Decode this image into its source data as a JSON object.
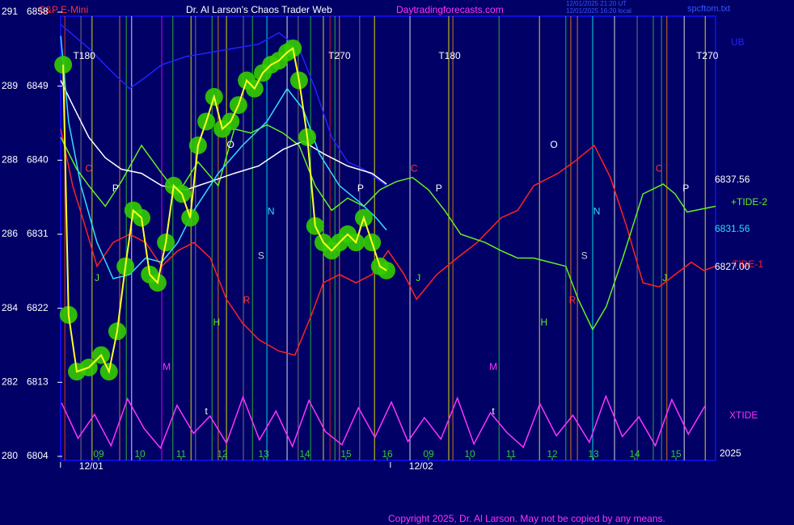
{
  "chart_data": {
    "type": "line",
    "header": {
      "symbol": "S&P E-Mini",
      "title": "Dr. Al Larson's Chaos Trader Web",
      "url": "Daytradingforecasts.com",
      "timestamp_ut": "12/01/2025 21:20 UT",
      "timestamp_local": "12/01/2025 16:20 local",
      "file": "spcftom.txt"
    },
    "copyright": "Copyright 2025, Dr. Al Larson. May not be copied by any means.",
    "xlim": [
      0,
      16
    ],
    "xticks": [
      {
        "value": 1,
        "label": "09"
      },
      {
        "value": 2,
        "label": "10"
      },
      {
        "value": 3,
        "label": "11"
      },
      {
        "value": 4,
        "label": "12"
      },
      {
        "value": 5,
        "label": "13"
      },
      {
        "value": 6,
        "label": "14"
      },
      {
        "value": 7,
        "label": "15"
      },
      {
        "value": 8,
        "label": "16"
      },
      {
        "value": 9,
        "label": "09"
      },
      {
        "value": 10,
        "label": "10"
      },
      {
        "value": 11,
        "label": "11"
      },
      {
        "value": 12,
        "label": "12"
      },
      {
        "value": 13,
        "label": "13"
      },
      {
        "value": 14,
        "label": "14"
      },
      {
        "value": 15,
        "label": "15"
      }
    ],
    "date_labels": [
      {
        "text": "12/01",
        "x": 0.82
      },
      {
        "text": "12/02",
        "x": 8.82
      }
    ],
    "year_label": "2025",
    "ylim": [
      6804,
      6858
    ],
    "yticks": [
      6804,
      6813,
      6822,
      6831,
      6840,
      6849,
      6858
    ],
    "left_scale": [
      "280",
      "282",
      "284",
      "286",
      "288",
      "289",
      "291"
    ],
    "event_lines": {
      "x": [
        0.18,
        0.57,
        0.84,
        1.51,
        1.67,
        1.8,
        2.53,
        2.8,
        3.24,
        3.35,
        3.75,
        3.9,
        4.1,
        4.51,
        4.73,
        5.08,
        5.57,
        5.84,
        6.14,
        6.45,
        6.61,
        6.73,
        6.84,
        7.33,
        7.69,
        8.55,
        9.49,
        9.59,
        10.71,
        11.69,
        12.33,
        12.45,
        12.61,
        12.98,
        13.51,
        14.06,
        14.45,
        14.65,
        14.78,
        15.2,
        15.71
      ],
      "colors": [
        "#ff4400",
        "#888888",
        "#ffff00",
        "#ff8800",
        "#33cc33",
        "#ffffff",
        "#ff00ff",
        "#33cc33",
        "#ffff00",
        "#888888",
        "#33cc33",
        "#ff8800",
        "#ffff00",
        "#888888",
        "#33cc33",
        "#00ffff",
        "#ffffff",
        "#888888",
        "#33cc33",
        "#ffff00",
        "#ff2200",
        "#33cc33",
        "#ff8800",
        "#888888",
        "#ffff00",
        "#ffffff",
        "#ffff00",
        "#ff8800",
        "#33cc33",
        "#ffff00",
        "#33cc33",
        "#ff8800",
        "#ff8800",
        "#00ffff",
        "#ffffff",
        "#888888",
        "#33cc33",
        "#33cc33",
        "#ff8800",
        "#ffffff",
        "#ffff00"
      ]
    },
    "series": [
      {
        "name": "UB",
        "color": "#2222ff",
        "x": [
          0.08,
          0.76,
          1.35,
          1.75,
          2.14,
          2.53,
          3.12,
          3.71,
          4.29,
          4.88,
          5.37,
          5.86,
          6.25,
          6.65,
          7.04,
          7.43,
          7.98
        ],
        "values": [
          6856.5,
          6853.6,
          6850.6,
          6848.7,
          6850.1,
          6851.6,
          6852.6,
          6853.1,
          6853.6,
          6854.1,
          6855.5,
          6853.6,
          6848.7,
          6842.8,
          6839.8,
          6838.9,
          6836.9
        ]
      },
      {
        "name": "XTIDE",
        "color": "#ff33ff",
        "x": [
          0.1,
          0.5,
          0.9,
          1.3,
          1.7,
          2.1,
          2.5,
          2.9,
          3.3,
          3.7,
          4.1,
          4.5,
          4.9,
          5.3,
          5.7,
          6.1,
          6.5,
          6.9,
          7.3,
          7.7,
          8.1,
          8.5,
          8.9,
          9.3,
          9.7,
          10.1,
          10.5,
          10.9,
          11.3,
          11.7,
          12.1,
          12.5,
          12.9,
          13.3,
          13.7,
          14.1,
          14.5,
          14.9,
          15.3,
          15.7
        ],
        "values": [
          6810.5,
          6806.2,
          6809.1,
          6805.3,
          6811.0,
          6807.4,
          6805.0,
          6810.2,
          6806.8,
          6808.9,
          6805.6,
          6811.2,
          6806.0,
          6809.5,
          6805.2,
          6810.8,
          6807.0,
          6805.4,
          6809.9,
          6806.3,
          6810.6,
          6805.8,
          6808.7,
          6806.1,
          6811.1,
          6805.5,
          6809.3,
          6806.9,
          6805.1,
          6810.4,
          6806.5,
          6809.0,
          6805.7,
          6811.3,
          6806.4,
          6808.8,
          6805.3,
          6810.9,
          6806.7,
          6810.1
        ]
      },
      {
        "name": "TIDE-1",
        "color": "#ff2222",
        "x": [
          0.08,
          0.37,
          0.67,
          0.96,
          1.35,
          1.75,
          2.14,
          2.53,
          2.92,
          3.31,
          3.71,
          4.1,
          4.49,
          4.88,
          5.37,
          5.76,
          6.16,
          6.45,
          6.84,
          7.24,
          7.63,
          8.02,
          8.41,
          8.71,
          9.2,
          9.69,
          10.18,
          10.76,
          11.16,
          11.55,
          12.14,
          12.53,
          13.02,
          13.41,
          13.8,
          14.2,
          14.59,
          14.98,
          15.37,
          15.67,
          15.96
        ],
        "values": [
          6843.8,
          6836.9,
          6832.0,
          6827.1,
          6830.0,
          6831.0,
          6830.0,
          6827.1,
          6829.0,
          6830.0,
          6828.1,
          6823.1,
          6820.2,
          6818.2,
          6816.8,
          6816.3,
          6821.2,
          6825.1,
          6826.1,
          6825.1,
          6826.1,
          6829.0,
          6826.1,
          6823.1,
          6826.1,
          6828.1,
          6830.0,
          6833.0,
          6833.9,
          6836.9,
          6838.4,
          6839.8,
          6841.8,
          6837.9,
          6832.0,
          6825.1,
          6824.6,
          6826.1,
          6827.6,
          6826.6,
          6827.1
        ]
      },
      {
        "name": "+TIDE-2",
        "color": "#66ee22",
        "x": [
          0.08,
          0.47,
          0.76,
          1.16,
          1.55,
          2.04,
          2.53,
          2.92,
          3.41,
          3.9,
          4.29,
          4.69,
          5.08,
          5.47,
          5.86,
          6.25,
          6.65,
          7.04,
          7.43,
          7.82,
          8.22,
          8.61,
          9.0,
          9.39,
          9.78,
          10.37,
          10.76,
          11.16,
          11.55,
          11.94,
          12.33,
          12.63,
          12.98,
          13.31,
          13.71,
          14.2,
          14.69,
          14.98,
          15.27,
          15.67,
          15.96
        ],
        "values": [
          6842.8,
          6838.9,
          6836.9,
          6834.4,
          6837.4,
          6841.8,
          6838.4,
          6835.9,
          6839.8,
          6836.9,
          6843.8,
          6843.3,
          6844.3,
          6843.3,
          6841.8,
          6836.9,
          6833.9,
          6835.4,
          6834.4,
          6836.4,
          6837.4,
          6837.9,
          6836.4,
          6833.9,
          6831.0,
          6830.0,
          6829.0,
          6828.1,
          6828.1,
          6827.6,
          6827.1,
          6823.1,
          6819.4,
          6822.2,
          6828.1,
          6835.9,
          6837.1,
          6835.9,
          6833.7,
          6834.1,
          6834.4
        ]
      },
      {
        "color": "#ffffff",
        "x": [
          0.08,
          0.37,
          0.76,
          1.16,
          1.55,
          2.04,
          2.53,
          3.12,
          3.71,
          4.29,
          4.88,
          5.47,
          5.96,
          6.45,
          7.04,
          7.63,
          7.98
        ],
        "values": [
          6849.7,
          6846.7,
          6842.8,
          6840.3,
          6838.9,
          6838.4,
          6836.9,
          6836.4,
          6837.4,
          6838.4,
          6839.3,
          6841.3,
          6842.3,
          6840.8,
          6839.3,
          6838.4,
          6837.1
        ]
      },
      {
        "color": "#33ddff",
        "x": [
          0.08,
          0.27,
          0.57,
          0.96,
          1.35,
          1.75,
          2.14,
          2.53,
          2.92,
          3.31,
          3.9,
          4.49,
          5.08,
          5.57,
          5.96,
          6.35,
          6.84,
          7.33,
          7.73,
          7.98
        ],
        "values": [
          6855.1,
          6844.7,
          6836.9,
          6830.0,
          6825.6,
          6826.1,
          6828.1,
          6827.6,
          6830.0,
          6833.9,
          6838.4,
          6841.8,
          6844.7,
          6848.7,
          6846.2,
          6840.8,
          6836.9,
          6834.9,
          6833.0,
          6831.5
        ]
      },
      {
        "color": "#ffff22",
        "marker_color": "#33cc00",
        "x": [
          0.14,
          0.27,
          0.47,
          0.76,
          1.06,
          1.25,
          1.45,
          1.65,
          1.84,
          2.04,
          2.24,
          2.43,
          2.63,
          2.82,
          3.02,
          3.22,
          3.41,
          3.61,
          3.8,
          4.0,
          4.2,
          4.39,
          4.59,
          4.78,
          4.98,
          5.18,
          5.37,
          5.57,
          5.71,
          5.86,
          6.06,
          6.25,
          6.45,
          6.65,
          6.84,
          7.04,
          7.24,
          7.43,
          7.63,
          7.82,
          7.98
        ],
        "values": [
          6851.6,
          6821.2,
          6814.3,
          6814.8,
          6816.3,
          6814.3,
          6819.2,
          6827.1,
          6833.9,
          6833.0,
          6826.1,
          6825.1,
          6830.0,
          6836.9,
          6835.9,
          6833.0,
          6841.8,
          6844.7,
          6847.7,
          6843.8,
          6844.7,
          6846.7,
          6849.7,
          6848.7,
          6850.6,
          6851.6,
          6852.1,
          6853.1,
          6853.6,
          6849.7,
          6842.8,
          6832.0,
          6830.0,
          6829.0,
          6830.0,
          6831.0,
          6830.0,
          6833.0,
          6830.0,
          6827.1,
          6826.6
        ]
      }
    ],
    "right_labels": [
      {
        "text": "6837.56",
        "color": "#ffffff"
      },
      {
        "text": "6831.56",
        "color": "#33ddff"
      },
      {
        "text": "6827.00",
        "color": "#ffffff"
      }
    ],
    "annotations": [
      {
        "text": "T180",
        "x": 0.65,
        "y": 6852.6,
        "color": "#ffffff"
      },
      {
        "text": "T270",
        "x": 6.84,
        "y": 6852.6,
        "color": "#ffffff"
      },
      {
        "text": "T180",
        "x": 9.51,
        "y": 6852.6,
        "color": "#ffffff"
      },
      {
        "text": "T270",
        "x": 15.76,
        "y": 6852.6,
        "color": "#ffffff"
      },
      {
        "text": "P",
        "x": 1.41,
        "y": 6836.5,
        "color": "#ffffff"
      },
      {
        "text": "P",
        "x": 7.35,
        "y": 6836.5,
        "color": "#ffffff"
      },
      {
        "text": "P",
        "x": 9.25,
        "y": 6836.5,
        "color": "#ffffff"
      },
      {
        "text": "P",
        "x": 15.24,
        "y": 6836.5,
        "color": "#ffffff"
      },
      {
        "text": "C",
        "x": 0.76,
        "y": 6838.9,
        "color": "#ff3333"
      },
      {
        "text": "C",
        "x": 8.65,
        "y": 6838.9,
        "color": "#ff3333"
      },
      {
        "text": "C",
        "x": 14.59,
        "y": 6838.9,
        "color": "#ff3333"
      },
      {
        "text": "O",
        "x": 4.2,
        "y": 6841.8,
        "color": "#ffffff"
      },
      {
        "text": "O",
        "x": 12.04,
        "y": 6841.8,
        "color": "#ffffff"
      },
      {
        "text": "N",
        "x": 5.18,
        "y": 6833.7,
        "color": "#33ddff"
      },
      {
        "text": "N",
        "x": 13.08,
        "y": 6833.7,
        "color": "#33ddff"
      },
      {
        "text": "S",
        "x": 4.94,
        "y": 6828.3,
        "color": "#cccccc"
      },
      {
        "text": "S",
        "x": 12.78,
        "y": 6828.3,
        "color": "#cccccc"
      },
      {
        "text": "J",
        "x": 0.96,
        "y": 6825.6,
        "color": "#66ee22"
      },
      {
        "text": "J",
        "x": 8.75,
        "y": 6825.6,
        "color": "#66ee22"
      },
      {
        "text": "J",
        "x": 14.73,
        "y": 6825.6,
        "color": "#66ee22"
      },
      {
        "text": "R",
        "x": 4.59,
        "y": 6822.9,
        "color": "#ff3333"
      },
      {
        "text": "R",
        "x": 12.49,
        "y": 6822.9,
        "color": "#ff3333"
      },
      {
        "text": "H",
        "x": 3.86,
        "y": 6820.2,
        "color": "#66ee22"
      },
      {
        "text": "H",
        "x": 11.8,
        "y": 6820.2,
        "color": "#66ee22"
      },
      {
        "text": "M",
        "x": 2.65,
        "y": 6814.8,
        "color": "#ff33ff"
      },
      {
        "text": "M",
        "x": 10.57,
        "y": 6814.8,
        "color": "#ff33ff"
      },
      {
        "text": "t",
        "x": 3.61,
        "y": 6809.4,
        "color": "#ffffff"
      },
      {
        "text": "t",
        "x": 10.57,
        "y": 6809.4,
        "color": "#ffffff"
      }
    ]
  }
}
